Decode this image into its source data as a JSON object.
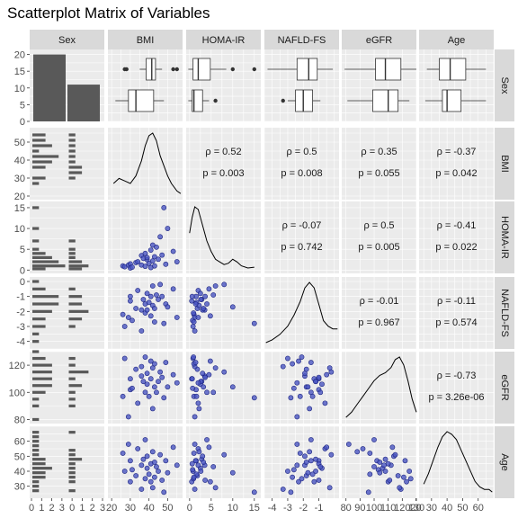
{
  "title": "Scatterplot Matrix of Variables",
  "chart_data": {
    "type": "scatter",
    "title": "Scatterplot Matrix of Variables",
    "variables": [
      "Sex",
      "BMI",
      "HOMA-IR",
      "NAFLD-FS",
      "eGFR",
      "Age"
    ],
    "sex_counts": {
      "categories": [
        "0",
        "1"
      ],
      "values": [
        20,
        11
      ]
    },
    "axes": {
      "Sex": {
        "ticks": [
          0,
          5,
          10,
          15,
          20
        ],
        "range": [
          0,
          21.5
        ]
      },
      "BMI": {
        "ticks": [
          20,
          30,
          40,
          50
        ],
        "range": [
          18,
          58
        ]
      },
      "HOMA-IR": {
        "ticks": [
          0,
          5,
          10,
          15
        ],
        "range": [
          -0.8,
          16.5
        ]
      },
      "NAFLD-FS": {
        "ticks": [
          -4,
          -3,
          -2,
          -1,
          0
        ],
        "range": [
          -4.5,
          0.3
        ]
      },
      "eGFR": {
        "ticks": [
          80,
          100,
          120
        ],
        "range": [
          77,
          130
        ]
      },
      "Age": {
        "ticks": [
          30,
          40,
          50,
          60
        ],
        "range": [
          22,
          70
        ]
      }
    },
    "x_tick_labels": {
      "Sex": [
        "0",
        "1",
        "2",
        "3",
        "0",
        "1",
        "2",
        "3"
      ],
      "BMI": [
        "20",
        "30",
        "40",
        "50"
      ],
      "HOMA-IR": [
        "0",
        "5",
        "10",
        "15"
      ],
      "NAFLD-FS": [
        "-4",
        "-3",
        "-2",
        "-1"
      ],
      "eGFR": [
        "80",
        "90",
        "100",
        "110",
        "120",
        "130"
      ],
      "Age": [
        "20",
        "30",
        "40",
        "50",
        "60"
      ]
    },
    "correlations": [
      {
        "row": "BMI",
        "col": "HOMA-IR",
        "rho": "ρ = 0.52",
        "p": "p = 0.003"
      },
      {
        "row": "BMI",
        "col": "NAFLD-FS",
        "rho": "ρ = 0.5",
        "p": "p = 0.008"
      },
      {
        "row": "BMI",
        "col": "eGFR",
        "rho": "ρ = 0.35",
        "p": "p = 0.055"
      },
      {
        "row": "BMI",
        "col": "Age",
        "rho": "ρ = -0.37",
        "p": "p = 0.042"
      },
      {
        "row": "HOMA-IR",
        "col": "NAFLD-FS",
        "rho": "ρ = -0.07",
        "p": "p = 0.742"
      },
      {
        "row": "HOMA-IR",
        "col": "eGFR",
        "rho": "ρ = 0.5",
        "p": "p = 0.005"
      },
      {
        "row": "HOMA-IR",
        "col": "Age",
        "rho": "ρ = -0.41",
        "p": "p = 0.022"
      },
      {
        "row": "NAFLD-FS",
        "col": "eGFR",
        "rho": "ρ = -0.01",
        "p": "p = 0.967"
      },
      {
        "row": "NAFLD-FS",
        "col": "Age",
        "rho": "ρ = -0.11",
        "p": "p = 0.574"
      },
      {
        "row": "eGFR",
        "col": "Age",
        "rho": "ρ = -0.73",
        "p": "p = 3.26e-06"
      }
    ],
    "boxplots": {
      "BMI": [
        {
          "group": "0",
          "q1": 38.5,
          "median": 41.5,
          "q3": 43.5,
          "lo": 35,
          "hi": 47,
          "outliers": [
            27,
            28,
            53,
            55
          ]
        },
        {
          "group": "1",
          "q1": 29,
          "median": 33,
          "q3": 42.5,
          "lo": 22,
          "hi": 48,
          "outliers": []
        }
      ],
      "HOMA-IR": [
        {
          "group": "0",
          "q1": 0.8,
          "median": 2.0,
          "q3": 4.8,
          "lo": -0.3,
          "hi": 8.5,
          "outliers": [
            10,
            15
          ]
        },
        {
          "group": "1",
          "q1": 0.6,
          "median": 1.0,
          "q3": 3.0,
          "lo": -0.3,
          "hi": 4.5,
          "outliers": [
            6
          ]
        }
      ],
      "NAFLD-FS": [
        {
          "group": "0",
          "q1": -2.4,
          "median": -1.65,
          "q3": -1.1,
          "lo": -4.3,
          "hi": -0.1,
          "outliers": []
        },
        {
          "group": "1",
          "q1": -2.5,
          "median": -2.0,
          "q3": -1.4,
          "lo": -3.0,
          "hi": -0.9,
          "outliers": [
            -3.3
          ]
        }
      ],
      "eGFR": [
        {
          "group": "0",
          "q1": 101,
          "median": 108,
          "q3": 119,
          "lo": 79,
          "hi": 130,
          "outliers": []
        },
        {
          "group": "1",
          "q1": 99,
          "median": 110,
          "q3": 117,
          "lo": 81,
          "hi": 125,
          "outliers": []
        }
      ],
      "Age": [
        {
          "group": "0",
          "q1": 35,
          "median": 42,
          "q3": 52,
          "lo": 27,
          "hi": 65,
          "outliers": []
        },
        {
          "group": "1",
          "q1": 37,
          "median": 40,
          "q3": 49,
          "lo": 26,
          "hi": 65,
          "outliers": []
        }
      ]
    },
    "sex_histograms": {
      "BMI": {
        "bins": [
          27,
          30,
          33,
          36,
          39,
          42,
          45,
          48,
          51,
          54
        ],
        "g0": [
          1,
          2,
          0,
          2,
          3,
          4,
          1,
          3,
          2,
          2
        ],
        "g1": [
          0,
          1,
          2,
          2,
          1,
          1,
          1,
          1,
          1,
          1
        ]
      },
      "HOMA-IR": {
        "bins": [
          0.3,
          1,
          2,
          3,
          4,
          5,
          7,
          10,
          15
        ],
        "g0": [
          2,
          5,
          4,
          3,
          2,
          1,
          1,
          1,
          1
        ],
        "g1": [
          2,
          3,
          2,
          1,
          1,
          1,
          1,
          0,
          0
        ]
      },
      "NAFLD-FS": {
        "bins": [
          -4,
          -3.5,
          -3,
          -2.5,
          -2,
          -1.5,
          -1,
          -0.5,
          0
        ],
        "g0": [
          1,
          1,
          2,
          2,
          3,
          4,
          4,
          2,
          1
        ],
        "g1": [
          0,
          0,
          1,
          2,
          3,
          2,
          2,
          1,
          0
        ]
      },
      "eGFR": {
        "bins": [
          80,
          90,
          95,
          100,
          105,
          110,
          115,
          120,
          125,
          130
        ],
        "g0": [
          1,
          1,
          1,
          2,
          3,
          3,
          3,
          3,
          2,
          1
        ],
        "g1": [
          0,
          1,
          1,
          1,
          2,
          1,
          3,
          1,
          1,
          0
        ]
      },
      "Age": {
        "bins": [
          27,
          30,
          33,
          36,
          39,
          42,
          45,
          48,
          51,
          54,
          57,
          60,
          63,
          66
        ],
        "g0": [
          1,
          1,
          1,
          2,
          2,
          3,
          2,
          2,
          1,
          1,
          1,
          1,
          1,
          1
        ],
        "g1": [
          1,
          0,
          1,
          1,
          1,
          1,
          1,
          2,
          1,
          1,
          0,
          0,
          0,
          1
        ]
      }
    },
    "points": {
      "BMI": [
        26,
        27,
        29,
        30,
        30,
        31,
        33,
        34,
        36,
        36,
        37,
        38,
        38,
        39,
        39,
        40,
        41,
        41,
        42,
        42,
        43,
        43,
        44,
        45,
        46,
        47,
        48,
        49,
        50,
        53,
        55
      ],
      "HOMA-IR": [
        1.0,
        0.8,
        1.2,
        1.5,
        0.5,
        0.7,
        1.8,
        2.0,
        3.5,
        1.2,
        2.8,
        4.0,
        0.9,
        2.5,
        3.0,
        1.6,
        4.8,
        0.6,
        2.2,
        6.0,
        3.2,
        1.0,
        5.5,
        2.6,
        8.0,
        3.6,
        15.0,
        1.4,
        10.0,
        4.5,
        2.0
      ],
      "NAFLD-FS": [
        -2.2,
        -3.0,
        -2.4,
        -1.0,
        -1.3,
        -2.6,
        -1.8,
        -0.6,
        -1.9,
        -3.3,
        -1.2,
        -1.5,
        -2.1,
        -0.8,
        -1.9,
        -1.4,
        -2.3,
        -1.0,
        -1.6,
        -0.3,
        -1.8,
        -2.7,
        -0.9,
        -1.2,
        -0.2,
        -1.0,
        -2.8,
        -1.5,
        -1.7,
        -0.5,
        -2.4
      ],
      "eGFR": [
        97,
        125,
        82,
        102,
        110,
        103,
        117,
        92,
        112,
        119,
        108,
        100,
        126,
        106,
        114,
        97,
        123,
        110,
        88,
        118,
        104,
        121,
        100,
        108,
        115,
        111,
        96,
        122,
        104,
        113,
        107
      ],
      "Age": [
        52,
        40,
        58,
        47,
        33,
        41,
        37,
        55,
        44,
        28,
        48,
        61,
        35,
        42,
        50,
        38,
        33,
        45,
        53,
        29,
        46,
        36,
        43,
        40,
        51,
        34,
        26,
        47,
        39,
        56,
        44
      ]
    },
    "density": {
      "BMI": [
        [
          21,
          5
        ],
        [
          24,
          7
        ],
        [
          27,
          6
        ],
        [
          30,
          5
        ],
        [
          33,
          8
        ],
        [
          36,
          14
        ],
        [
          38,
          20
        ],
        [
          40,
          24
        ],
        [
          42,
          25
        ],
        [
          44,
          22
        ],
        [
          46,
          16
        ],
        [
          48,
          12
        ],
        [
          50,
          8
        ],
        [
          52,
          5
        ],
        [
          55,
          2
        ],
        [
          57,
          1
        ]
      ],
      "HOMA-IR": [
        [
          0,
          14
        ],
        [
          0.6,
          20
        ],
        [
          1.2,
          24
        ],
        [
          2,
          23
        ],
        [
          3,
          17
        ],
        [
          4,
          11
        ],
        [
          5,
          7
        ],
        [
          6,
          4
        ],
        [
          7,
          3
        ],
        [
          8,
          2
        ],
        [
          9,
          2.5
        ],
        [
          10,
          4
        ],
        [
          11,
          3
        ],
        [
          12,
          1.5
        ],
        [
          13.5,
          0.7
        ],
        [
          15,
          1
        ]
      ],
      "NAFLD-FS": [
        [
          -4.4,
          1
        ],
        [
          -4,
          2
        ],
        [
          -3.5,
          4
        ],
        [
          -3,
          7
        ],
        [
          -2.6,
          11
        ],
        [
          -2.2,
          16
        ],
        [
          -1.9,
          21
        ],
        [
          -1.6,
          23
        ],
        [
          -1.3,
          21
        ],
        [
          -1,
          15
        ],
        [
          -0.7,
          9
        ],
        [
          -0.4,
          7
        ],
        [
          -0.1,
          6
        ],
        [
          0.2,
          6
        ]
      ],
      "eGFR": [
        [
          80,
          1
        ],
        [
          84,
          3
        ],
        [
          88,
          6
        ],
        [
          92,
          9
        ],
        [
          96,
          12
        ],
        [
          100,
          15
        ],
        [
          104,
          17
        ],
        [
          108,
          18
        ],
        [
          112,
          20
        ],
        [
          115,
          23
        ],
        [
          118,
          24
        ],
        [
          121,
          21
        ],
        [
          124,
          15
        ],
        [
          127,
          8
        ],
        [
          130,
          3
        ]
      ],
      "Age": [
        [
          25,
          4
        ],
        [
          28,
          8
        ],
        [
          31,
          13
        ],
        [
          34,
          18
        ],
        [
          37,
          22
        ],
        [
          40,
          24
        ],
        [
          43,
          23
        ],
        [
          46,
          21
        ],
        [
          49,
          17
        ],
        [
          52,
          13
        ],
        [
          55,
          9
        ],
        [
          58,
          5
        ],
        [
          61,
          3
        ],
        [
          64,
          2
        ],
        [
          67,
          2
        ],
        [
          69,
          1
        ]
      ]
    }
  }
}
